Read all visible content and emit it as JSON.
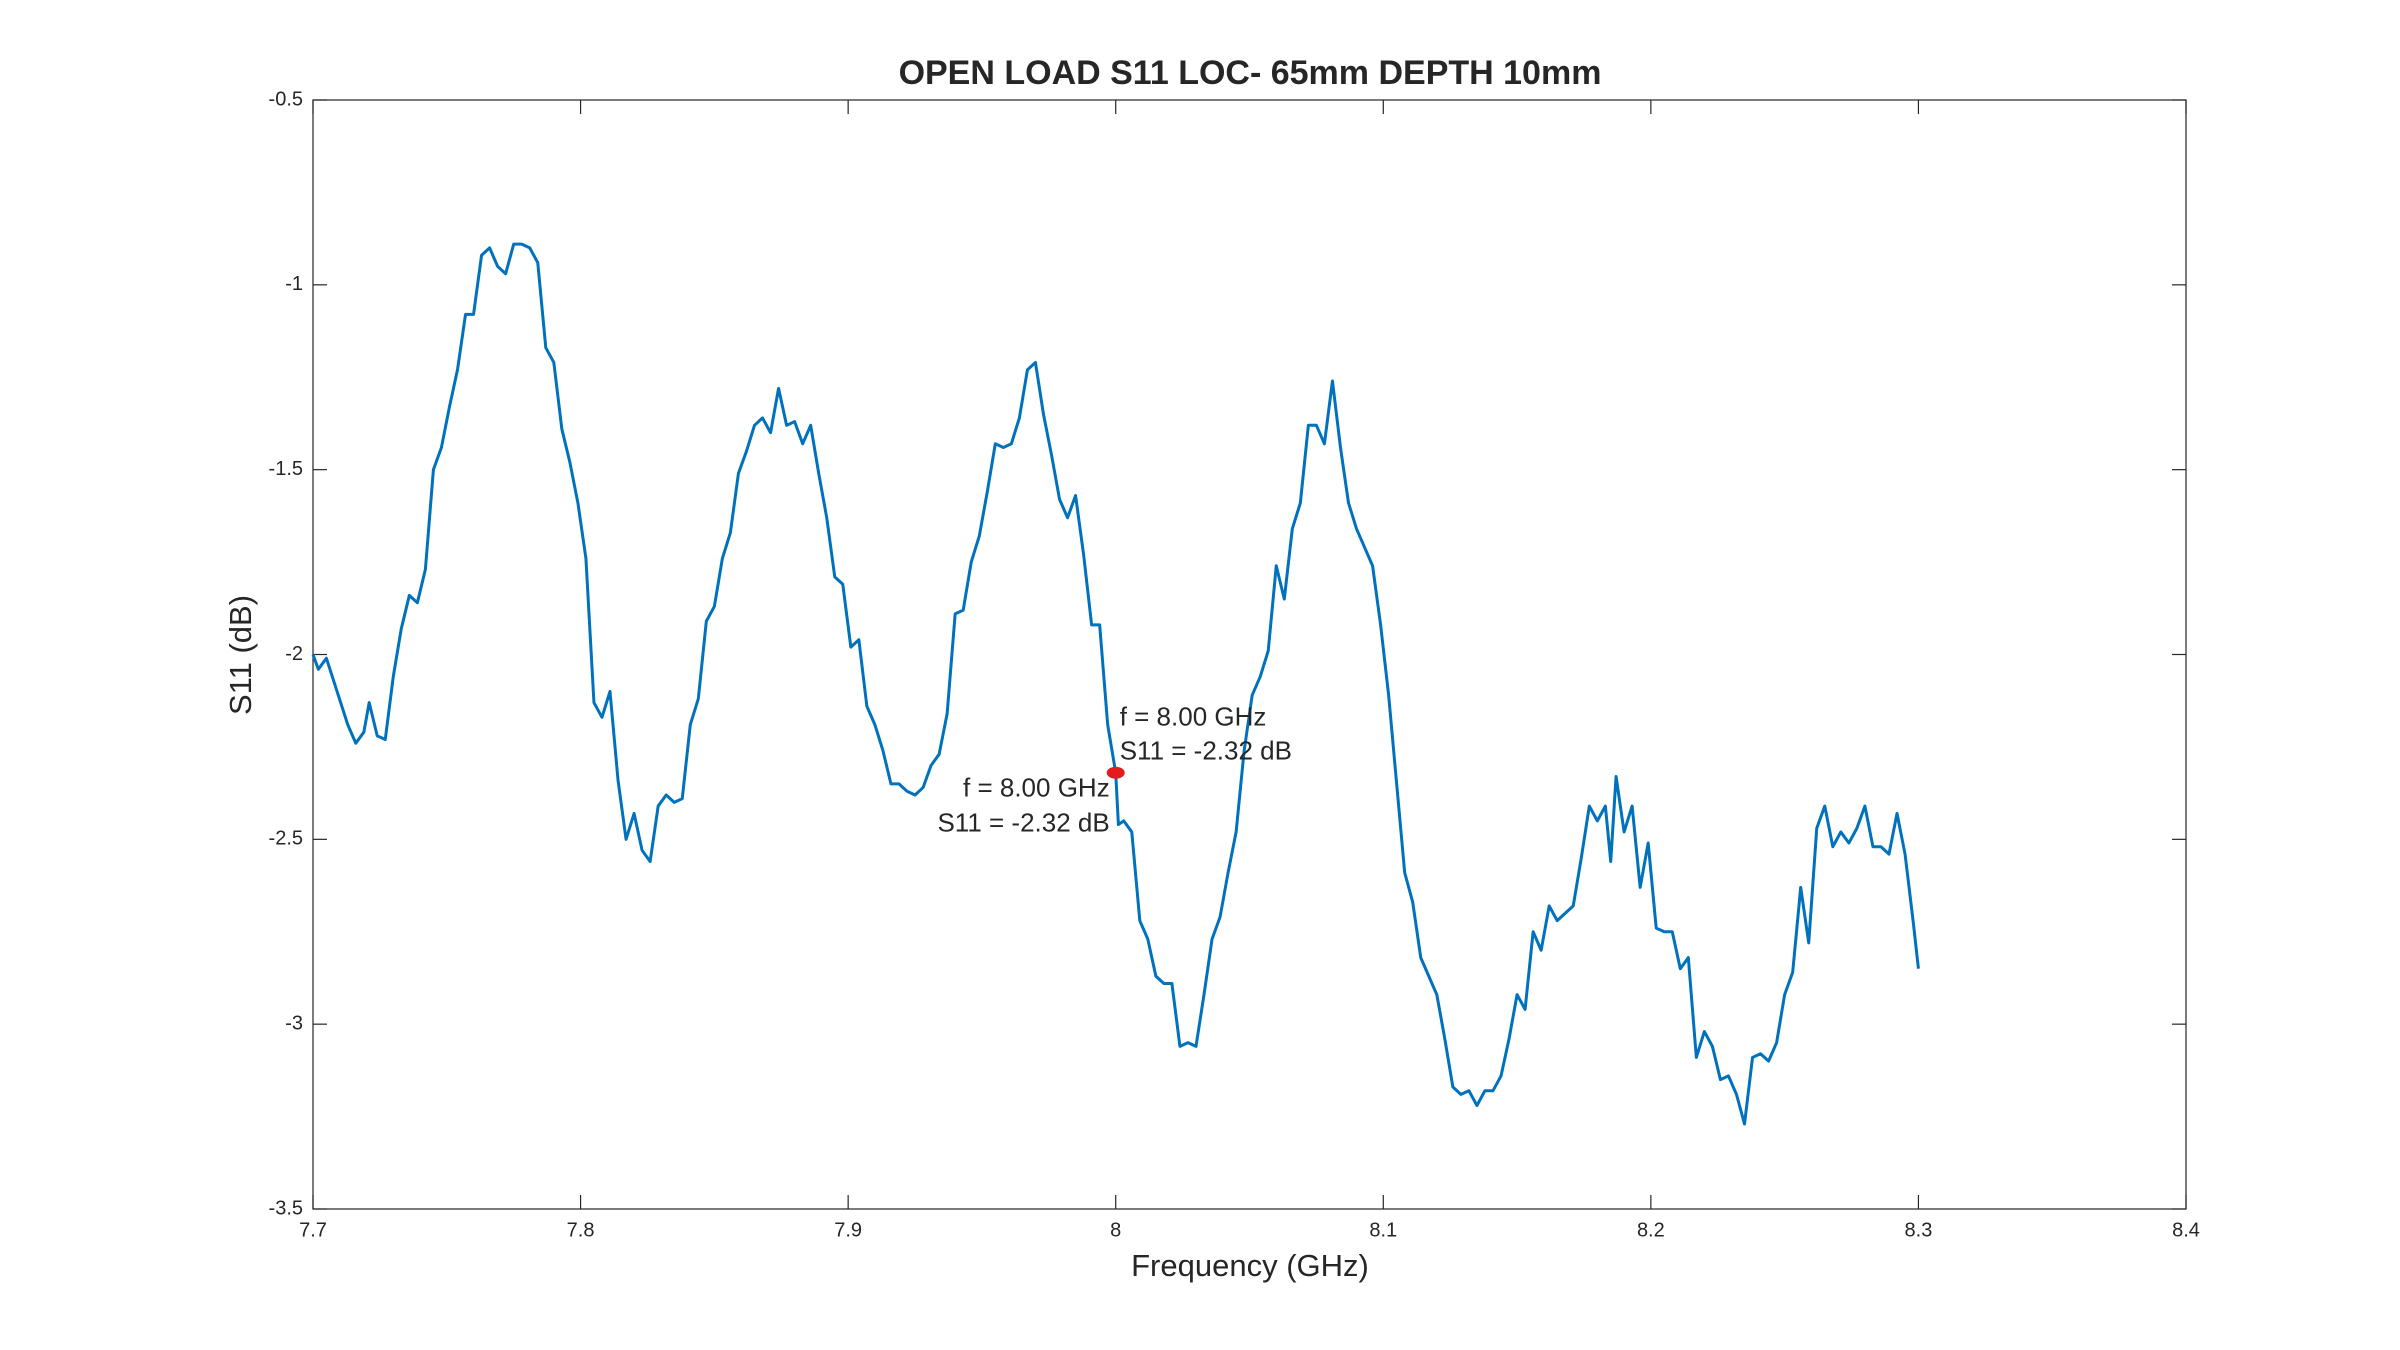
{
  "chart_data": {
    "type": "line",
    "title": "OPEN LOAD S11 LOC- 65mm DEPTH 10mm",
    "xlabel": "Frequency (GHz)",
    "ylabel": "S11 (dB)",
    "xlim": [
      7.7,
      8.4
    ],
    "xticks": [
      7.7,
      7.8,
      7.9,
      8,
      8.1,
      8.2,
      8.3,
      8.4
    ],
    "ylim": [
      -3.5,
      -0.5
    ],
    "yticks": [
      -3.5,
      -3,
      -2.5,
      -2,
      -1.5,
      -1,
      -0.5
    ],
    "x": [
      7.7,
      7.702,
      7.705,
      7.709,
      7.713,
      7.716,
      7.719,
      7.721,
      7.724,
      7.727,
      7.73,
      7.733,
      7.736,
      7.739,
      7.742,
      7.745,
      7.748,
      7.751,
      7.754,
      7.757,
      7.76,
      7.763,
      7.766,
      7.769,
      7.772,
      7.775,
      7.778,
      7.781,
      7.784,
      7.787,
      7.79,
      7.793,
      7.796,
      7.799,
      7.802,
      7.805,
      7.808,
      7.811,
      7.814,
      7.817,
      7.82,
      7.823,
      7.826,
      7.829,
      7.832,
      7.835,
      7.838,
      7.841,
      7.844,
      7.847,
      7.85,
      7.853,
      7.856,
      7.859,
      7.862,
      7.865,
      7.868,
      7.871,
      7.874,
      7.877,
      7.88,
      7.883,
      7.886,
      7.889,
      7.892,
      7.895,
      7.898,
      7.901,
      7.904,
      7.907,
      7.91,
      7.913,
      7.916,
      7.919,
      7.922,
      7.925,
      7.928,
      7.931,
      7.934,
      7.937,
      7.94,
      7.943,
      7.946,
      7.949,
      7.952,
      7.955,
      7.958,
      7.961,
      7.964,
      7.967,
      7.97,
      7.973,
      7.976,
      7.979,
      7.982,
      7.985,
      7.988,
      7.991,
      7.994,
      7.997,
      8.0,
      8.001,
      8.003,
      8.006,
      8.009,
      8.012,
      8.015,
      8.018,
      8.021,
      8.024,
      8.027,
      8.03,
      8.033,
      8.036,
      8.039,
      8.042,
      8.045,
      8.048,
      8.051,
      8.054,
      8.057,
      8.06,
      8.063,
      8.066,
      8.069,
      8.072,
      8.075,
      8.078,
      8.081,
      8.084,
      8.087,
      8.09,
      8.093,
      8.096,
      8.099,
      8.102,
      8.105,
      8.108,
      8.111,
      8.114,
      8.117,
      8.12,
      8.123,
      8.126,
      8.129,
      8.132,
      8.135,
      8.138,
      8.141,
      8.144,
      8.147,
      8.15,
      8.153,
      8.156,
      8.159,
      8.162,
      8.165,
      8.168,
      8.171,
      8.174,
      8.177,
      8.18,
      8.183,
      8.185,
      8.187,
      8.19,
      8.193,
      8.196,
      8.199,
      8.202,
      8.205,
      8.208,
      8.211,
      8.214,
      8.217,
      8.22,
      8.223,
      8.226,
      8.229,
      8.232,
      8.235,
      8.238,
      8.241,
      8.244,
      8.247,
      8.25,
      8.253,
      8.256,
      8.259,
      8.262,
      8.265,
      8.268,
      8.271,
      8.274,
      8.277,
      8.28,
      8.283,
      8.286,
      8.289,
      8.292,
      8.295,
      8.298,
      8.3
    ],
    "series": [
      {
        "color": "#0072bd",
        "values": [
          -2.0,
          -2.04,
          -2.01,
          -2.1,
          -2.19,
          -2.24,
          -2.21,
          -2.13,
          -2.22,
          -2.23,
          -2.06,
          -1.93,
          -1.84,
          -1.86,
          -1.77,
          -1.5,
          -1.44,
          -1.33,
          -1.23,
          -1.08,
          -1.08,
          -0.92,
          -0.9,
          -0.95,
          -0.97,
          -0.89,
          -0.89,
          -0.9,
          -0.94,
          -1.17,
          -1.21,
          -1.39,
          -1.48,
          -1.59,
          -1.74,
          -2.13,
          -2.17,
          -2.1,
          -2.34,
          -2.5,
          -2.43,
          -2.53,
          -2.56,
          -2.41,
          -2.38,
          -2.4,
          -2.39,
          -2.19,
          -2.12,
          -1.91,
          -1.87,
          -1.74,
          -1.67,
          -1.51,
          -1.45,
          -1.38,
          -1.36,
          -1.4,
          -1.28,
          -1.38,
          -1.37,
          -1.43,
          -1.38,
          -1.51,
          -1.63,
          -1.79,
          -1.81,
          -1.98,
          -1.96,
          -2.14,
          -2.19,
          -2.26,
          -2.35,
          -2.35,
          -2.37,
          -2.38,
          -2.36,
          -2.3,
          -2.27,
          -2.16,
          -1.89,
          -1.88,
          -1.75,
          -1.68,
          -1.56,
          -1.43,
          -1.44,
          -1.43,
          -1.36,
          -1.23,
          -1.21,
          -1.35,
          -1.46,
          -1.58,
          -1.63,
          -1.57,
          -1.73,
          -1.92,
          -1.92,
          -2.19,
          -2.32,
          -2.46,
          -2.45,
          -2.48,
          -2.72,
          -2.77,
          -2.87,
          -2.89,
          -2.89,
          -3.06,
          -3.05,
          -3.06,
          -2.92,
          -2.77,
          -2.71,
          -2.59,
          -2.48,
          -2.26,
          -2.11,
          -2.06,
          -1.99,
          -1.76,
          -1.85,
          -1.66,
          -1.59,
          -1.38,
          -1.38,
          -1.43,
          -1.26,
          -1.44,
          -1.59,
          -1.66,
          -1.71,
          -1.76,
          -1.92,
          -2.11,
          -2.35,
          -2.59,
          -2.67,
          -2.82,
          -2.87,
          -2.92,
          -3.04,
          -3.17,
          -3.19,
          -3.18,
          -3.22,
          -3.18,
          -3.18,
          -3.14,
          -3.04,
          -2.92,
          -2.96,
          -2.75,
          -2.8,
          -2.68,
          -2.72,
          -2.7,
          -2.68,
          -2.55,
          -2.41,
          -2.45,
          -2.41,
          -2.56,
          -2.33,
          -2.48,
          -2.41,
          -2.63,
          -2.51,
          -2.74,
          -2.75,
          -2.75,
          -2.85,
          -2.82,
          -3.09,
          -3.02,
          -3.06,
          -3.15,
          -3.14,
          -3.19,
          -3.27,
          -3.09,
          -3.08,
          -3.1,
          -3.05,
          -2.92,
          -2.86,
          -2.63,
          -2.78,
          -2.47,
          -2.41,
          -2.52,
          -2.48,
          -2.51,
          -2.47,
          -2.41,
          -2.52,
          -2.52,
          -2.54,
          -2.43,
          -2.54,
          -2.72,
          -2.85
        ]
      }
    ],
    "marker": {
      "x": 8.0,
      "y": -2.32,
      "color": "#e41a1c"
    },
    "annotations": [
      [
        "f = 8.00 GHz",
        "S11 = -2.32 dB"
      ],
      [
        "f = 8.00 GHz",
        "S11 = -2.32 dB"
      ]
    ]
  }
}
